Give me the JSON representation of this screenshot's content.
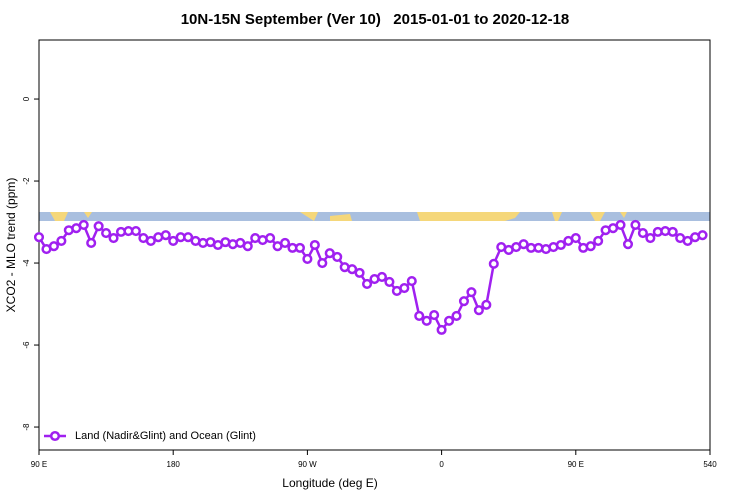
{
  "chart_data": {
    "type": "line",
    "title": "10N-15N September (Ver 10)   2015-01-01 to 2020-12-18",
    "x_label": "Longitude (deg E)",
    "y_label": "XCO2 - MLO trend (ppm)",
    "xlim": [
      90,
      540
    ],
    "ylim": [
      -8.56,
      1.44
    ],
    "xticks": [
      {
        "value": 90,
        "label": "90 E"
      },
      180,
      {
        "value": 270,
        "label": "90 W"
      },
      {
        "value": 360,
        "label": "0"
      },
      {
        "value": 450,
        "label": "90 E"
      },
      540
    ],
    "yticks": [
      0,
      -2,
      -4,
      -6,
      -8
    ],
    "legend": "bottom-left",
    "x": [
      90,
      95,
      100,
      105,
      110,
      115,
      120,
      125,
      130,
      135,
      140,
      145,
      150,
      155,
      160,
      165,
      170,
      175,
      180,
      185,
      190,
      195,
      200,
      205,
      210,
      215,
      220,
      225,
      230,
      235,
      240,
      245,
      250,
      255,
      260,
      265,
      270,
      275,
      280,
      285,
      290,
      295,
      300,
      305,
      310,
      315,
      320,
      325,
      330,
      335,
      340,
      345,
      350,
      355,
      360,
      365,
      370,
      375,
      380,
      385,
      390,
      395,
      400,
      405,
      410,
      415,
      420,
      425,
      430,
      435,
      440,
      445,
      450,
      455,
      460,
      465,
      470,
      475,
      480,
      485,
      490,
      495,
      500,
      505,
      510,
      515,
      520,
      525,
      530,
      535
    ],
    "series": [
      {
        "name": "Land (Nadir&Glint) and Ocean (Glint)",
        "color": "#a020f0",
        "values": [
          -3.37,
          -3.66,
          -3.59,
          -3.46,
          -3.2,
          -3.15,
          -3.07,
          -3.51,
          -3.1,
          -3.27,
          -3.39,
          -3.24,
          -3.22,
          -3.22,
          -3.39,
          -3.46,
          -3.37,
          -3.32,
          -3.46,
          -3.37,
          -3.37,
          -3.46,
          -3.51,
          -3.49,
          -3.56,
          -3.49,
          -3.54,
          -3.51,
          -3.59,
          -3.39,
          -3.44,
          -3.39,
          -3.59,
          -3.51,
          -3.63,
          -3.63,
          -3.9,
          -3.56,
          -4.0,
          -3.76,
          -3.85,
          -4.1,
          -4.15,
          -4.24,
          -4.51,
          -4.39,
          -4.34,
          -4.46,
          -4.68,
          -4.61,
          -4.44,
          -5.29,
          -5.41,
          -5.27,
          -5.63,
          -5.41,
          -5.29,
          -4.93,
          -4.71,
          -5.15,
          -5.02,
          -4.02,
          -3.61,
          -3.68,
          -3.61,
          -3.54,
          -3.63,
          -3.63,
          -3.66,
          -3.61,
          -3.56,
          -3.46,
          -3.39,
          -3.63,
          -3.59,
          -3.46,
          -3.2,
          -3.15,
          -3.07,
          -3.54,
          -3.07,
          -3.27,
          -3.39,
          -3.24,
          -3.22,
          -3.24,
          -3.39,
          -3.46,
          -3.37,
          -3.32
        ]
      }
    ]
  }
}
